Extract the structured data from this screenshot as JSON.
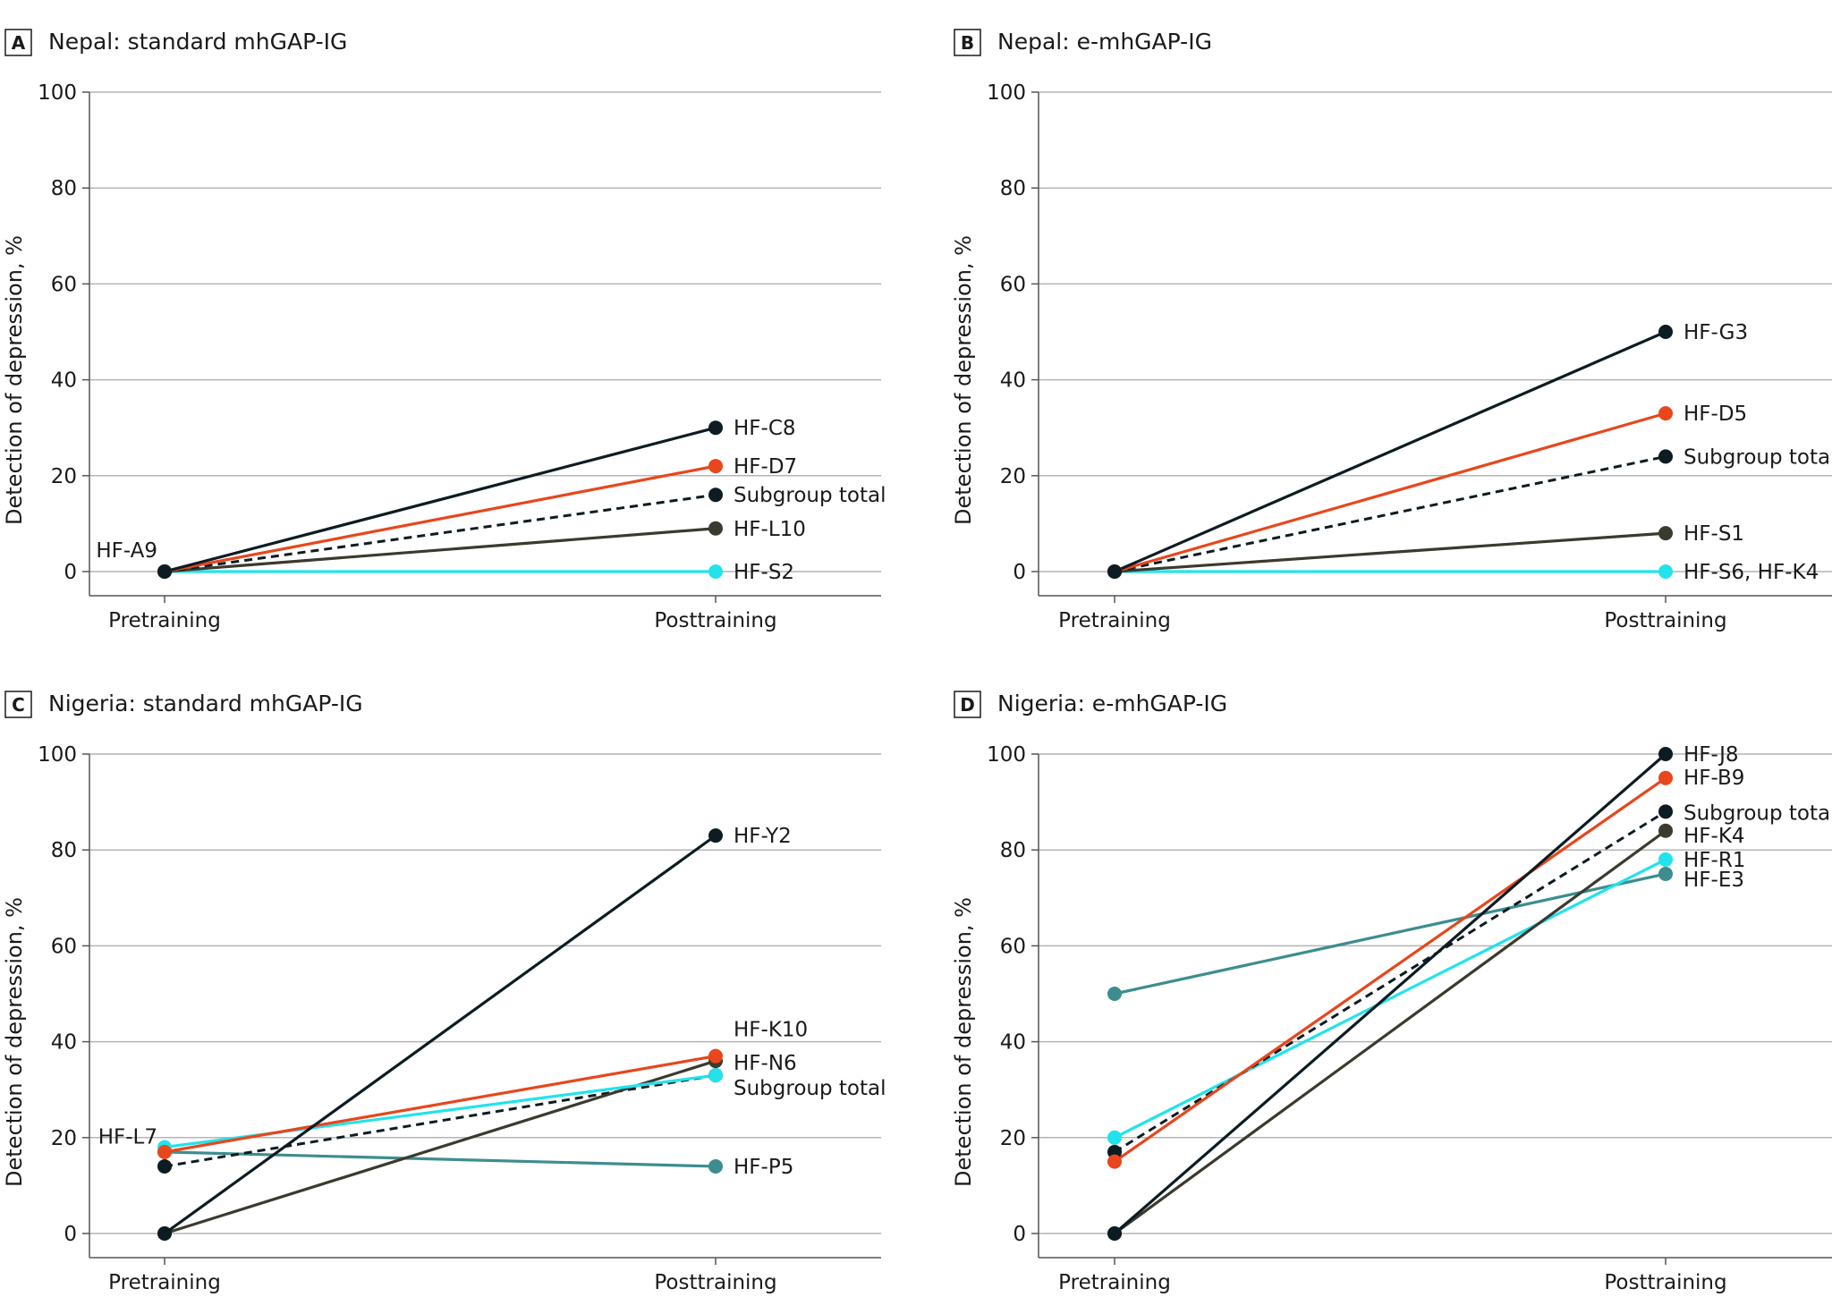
{
  "figure": {
    "y_axis_label": "Detection of depression, %",
    "x_categories": [
      "Pretraining",
      "Posttraining"
    ],
    "y_ticks": [
      "0",
      "20",
      "40",
      "60",
      "80",
      "100"
    ],
    "colors": {
      "black": "#0d1c22",
      "orange": "#e8461c",
      "cyan": "#22e3eb",
      "dark_olive": "#3b3a2e",
      "teal": "#3d8d8f",
      "axis": "#555555",
      "grid": "#b4b4b4"
    }
  },
  "chart_data": [
    {
      "panel": "A",
      "type": "line",
      "title": "Nepal: standard mhGAP-IG",
      "xlabel": "",
      "ylabel": "Detection of depression, %",
      "categories": [
        "Pretraining",
        "Posttraining"
      ],
      "ylim": [
        0,
        100
      ],
      "pre_annotation": "HF-A9",
      "series": [
        {
          "name": "HF-C8",
          "values": [
            0,
            30
          ],
          "color": "black",
          "dashed": false,
          "label_side": "post"
        },
        {
          "name": "HF-D7",
          "values": [
            0,
            22
          ],
          "color": "orange",
          "dashed": false,
          "label_side": "post"
        },
        {
          "name": "Subgroup total",
          "values": [
            0,
            16
          ],
          "color": "black",
          "dashed": true,
          "label_side": "post"
        },
        {
          "name": "HF-L10",
          "values": [
            0,
            9
          ],
          "color": "dark_olive",
          "dashed": false,
          "label_side": "post"
        },
        {
          "name": "HF-S2",
          "values": [
            0,
            0
          ],
          "color": "cyan",
          "dashed": false,
          "label_side": "post"
        }
      ]
    },
    {
      "panel": "B",
      "type": "line",
      "title": "Nepal: e-mhGAP-IG",
      "xlabel": "",
      "ylabel": "Detection of depression, %",
      "categories": [
        "Pretraining",
        "Posttraining"
      ],
      "ylim": [
        0,
        100
      ],
      "series": [
        {
          "name": "HF-G3",
          "values": [
            0,
            50
          ],
          "color": "black",
          "dashed": false,
          "label_side": "post"
        },
        {
          "name": "HF-D5",
          "values": [
            0,
            33
          ],
          "color": "orange",
          "dashed": false,
          "label_side": "post"
        },
        {
          "name": "Subgroup total",
          "values": [
            0,
            24
          ],
          "color": "black",
          "dashed": true,
          "label_side": "post"
        },
        {
          "name": "HF-S1",
          "values": [
            0,
            8
          ],
          "color": "dark_olive",
          "dashed": false,
          "label_side": "post"
        },
        {
          "name": "HF-S6, HF-K4",
          "values": [
            0,
            0
          ],
          "color": "cyan",
          "dashed": false,
          "label_side": "post"
        }
      ]
    },
    {
      "panel": "C",
      "type": "line",
      "title": "Nigeria: standard mhGAP-IG",
      "xlabel": "",
      "ylabel": "Detection of depression, %",
      "categories": [
        "Pretraining",
        "Posttraining"
      ],
      "ylim": [
        0,
        100
      ],
      "series": [
        {
          "name": "HF-Y2",
          "values": [
            0,
            83
          ],
          "color": "black",
          "dashed": false,
          "label_side": "post"
        },
        {
          "name": "HF-K10",
          "values": [
            17,
            37
          ],
          "color": "orange",
          "dashed": false,
          "label_side": "post"
        },
        {
          "name": "HF-L7",
          "values": [
            18,
            33
          ],
          "color": "cyan",
          "dashed": false,
          "label_side": "pre"
        },
        {
          "name": "HF-N6",
          "values": [
            0,
            36
          ],
          "color": "dark_olive",
          "dashed": false,
          "label_side": "post"
        },
        {
          "name": "Subgroup total",
          "values": [
            14,
            33
          ],
          "color": "black",
          "dashed": true,
          "label_side": "post"
        },
        {
          "name": "HF-P5",
          "values": [
            17,
            14
          ],
          "color": "teal",
          "dashed": false,
          "label_side": "post"
        }
      ]
    },
    {
      "panel": "D",
      "type": "line",
      "title": "Nigeria: e-mhGAP-IG",
      "xlabel": "",
      "ylabel": "Detection of depression, %",
      "categories": [
        "Pretraining",
        "Posttraining"
      ],
      "ylim": [
        0,
        100
      ],
      "series": [
        {
          "name": "HF-J8",
          "values": [
            0,
            100
          ],
          "color": "black",
          "dashed": false,
          "label_side": "post"
        },
        {
          "name": "HF-B9",
          "values": [
            15,
            95
          ],
          "color": "orange",
          "dashed": false,
          "label_side": "post"
        },
        {
          "name": "Subgroup total",
          "values": [
            17,
            88
          ],
          "color": "black",
          "dashed": true,
          "label_side": "post"
        },
        {
          "name": "HF-K4",
          "values": [
            0,
            84
          ],
          "color": "dark_olive",
          "dashed": false,
          "label_side": "post"
        },
        {
          "name": "HF-R1",
          "values": [
            20,
            78
          ],
          "color": "cyan",
          "dashed": false,
          "label_side": "post"
        },
        {
          "name": "HF-E3",
          "values": [
            50,
            75
          ],
          "color": "teal",
          "dashed": false,
          "label_side": "post"
        }
      ]
    }
  ]
}
